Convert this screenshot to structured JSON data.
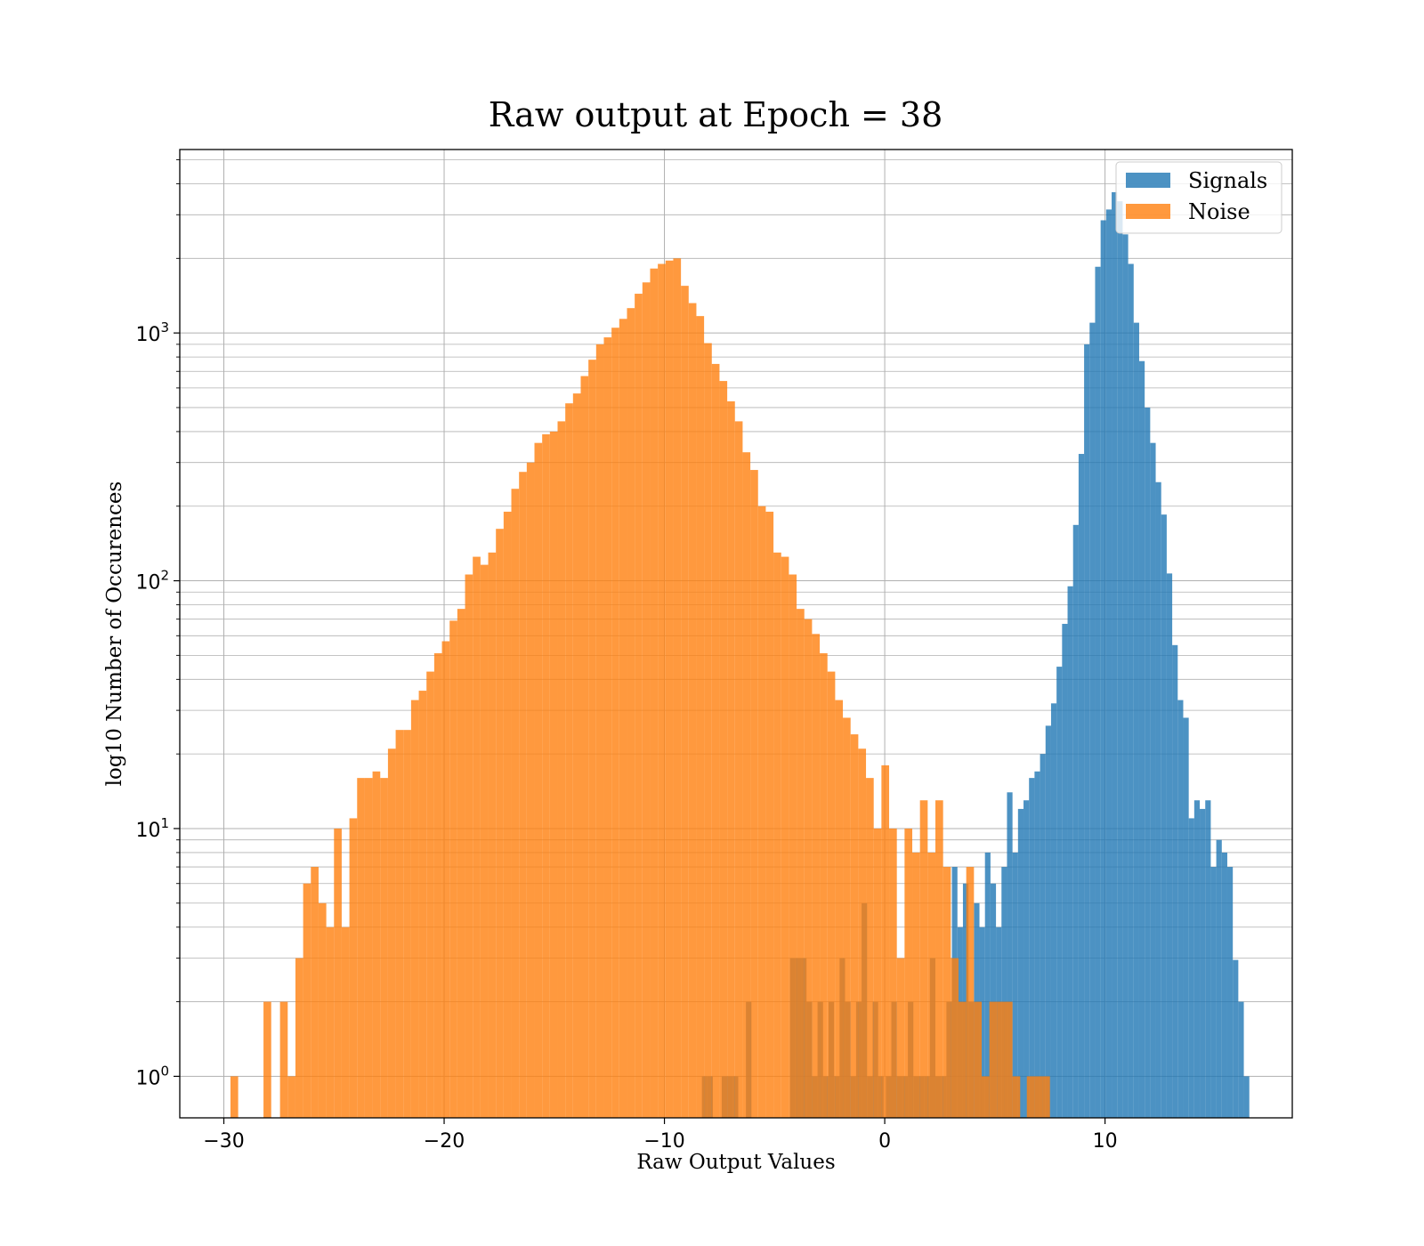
{
  "chart_data": {
    "type": "bar",
    "title": "Raw output at Epoch = 38",
    "xlabel": "Raw Output Values",
    "ylabel": "log10 Number of Occurences",
    "xlim": [
      -32,
      18.5
    ],
    "ylim": [
      0.68,
      5500
    ],
    "yscale": "log",
    "grid": true,
    "legend_position": "top-right",
    "x_ticks": [
      {
        "value": -30,
        "label": "−30"
      },
      {
        "value": -20,
        "label": "−20"
      },
      {
        "value": -10,
        "label": "−10"
      },
      {
        "value": 0,
        "label": "0"
      },
      {
        "value": 10,
        "label": "10"
      }
    ],
    "y_ticks": [
      {
        "value": 1,
        "base": "10",
        "exp": "0"
      },
      {
        "value": 10,
        "base": "10",
        "exp": "1"
      },
      {
        "value": 100,
        "base": "10",
        "exp": "2"
      },
      {
        "value": 1000,
        "base": "10",
        "exp": "3"
      }
    ],
    "series": [
      {
        "name": "Signals",
        "color": "#1f77b4",
        "opacity": 0.8,
        "bins": [
          [
            -8.3,
            -8.05,
            1
          ],
          [
            -8.05,
            -7.8,
            1
          ],
          [
            -7.4,
            -7.15,
            1
          ],
          [
            -7.15,
            -6.9,
            1
          ],
          [
            -6.9,
            -6.65,
            1
          ],
          [
            -6.3,
            -6.05,
            2
          ],
          [
            -4.3,
            -4.05,
            3
          ],
          [
            -4.05,
            -3.8,
            3
          ],
          [
            -3.8,
            -3.55,
            3
          ],
          [
            -3.55,
            -3.3,
            2
          ],
          [
            -3.3,
            -3.05,
            1
          ],
          [
            -3.05,
            -2.8,
            2
          ],
          [
            -2.8,
            -2.55,
            1
          ],
          [
            -2.55,
            -2.3,
            2
          ],
          [
            -2.3,
            -2.05,
            1
          ],
          [
            -2.05,
            -1.8,
            3
          ],
          [
            -1.8,
            -1.55,
            2
          ],
          [
            -1.55,
            -1.3,
            1
          ],
          [
            -1.3,
            -1.05,
            2
          ],
          [
            -1.05,
            -0.8,
            5
          ],
          [
            -0.8,
            -0.55,
            1
          ],
          [
            -0.55,
            -0.3,
            2
          ],
          [
            -0.3,
            -0.05,
            1
          ],
          [
            0.05,
            0.3,
            1
          ],
          [
            0.3,
            0.55,
            2
          ],
          [
            0.55,
            0.8,
            1
          ],
          [
            0.8,
            1.05,
            1
          ],
          [
            1.05,
            1.3,
            2
          ],
          [
            1.3,
            1.55,
            1
          ],
          [
            1.55,
            1.8,
            1
          ],
          [
            1.8,
            2.05,
            1
          ],
          [
            2.05,
            2.3,
            3
          ],
          [
            2.3,
            2.55,
            1
          ],
          [
            2.55,
            2.8,
            1
          ],
          [
            2.8,
            3.05,
            2
          ],
          [
            3.05,
            3.3,
            7
          ],
          [
            3.3,
            3.55,
            4
          ],
          [
            3.55,
            3.8,
            6
          ],
          [
            3.8,
            4.05,
            2
          ],
          [
            4.05,
            4.3,
            5
          ],
          [
            4.3,
            4.55,
            4
          ],
          [
            4.55,
            4.8,
            8
          ],
          [
            4.8,
            5.05,
            6
          ],
          [
            5.05,
            5.3,
            4
          ],
          [
            5.3,
            5.55,
            7
          ],
          [
            5.55,
            5.8,
            14
          ],
          [
            5.8,
            6.05,
            8
          ],
          [
            6.05,
            6.3,
            12
          ],
          [
            6.3,
            6.55,
            13
          ],
          [
            6.55,
            6.8,
            16
          ],
          [
            6.8,
            7.05,
            17
          ],
          [
            7.05,
            7.3,
            20
          ],
          [
            7.3,
            7.55,
            26
          ],
          [
            7.55,
            7.8,
            32
          ],
          [
            7.8,
            8.05,
            45
          ],
          [
            8.05,
            8.3,
            67
          ],
          [
            8.3,
            8.55,
            95
          ],
          [
            8.55,
            8.8,
            168
          ],
          [
            8.8,
            9.05,
            325
          ],
          [
            9.05,
            9.3,
            900
          ],
          [
            9.3,
            9.55,
            1100
          ],
          [
            9.55,
            9.8,
            1850
          ],
          [
            9.8,
            10.05,
            2850
          ],
          [
            10.05,
            10.3,
            3150
          ],
          [
            10.3,
            10.55,
            3700
          ],
          [
            10.55,
            10.8,
            3400
          ],
          [
            10.8,
            11.05,
            2500
          ],
          [
            11.05,
            11.3,
            1900
          ],
          [
            11.3,
            11.55,
            1100
          ],
          [
            11.55,
            11.8,
            770
          ],
          [
            11.8,
            12.05,
            500
          ],
          [
            12.05,
            12.3,
            360
          ],
          [
            12.3,
            12.55,
            250
          ],
          [
            12.55,
            12.8,
            185
          ],
          [
            12.8,
            13.05,
            107
          ],
          [
            13.05,
            13.3,
            55
          ],
          [
            13.3,
            13.55,
            33
          ],
          [
            13.55,
            13.8,
            28
          ],
          [
            13.8,
            14.05,
            11
          ],
          [
            14.05,
            14.3,
            13
          ],
          [
            14.3,
            14.55,
            12
          ],
          [
            14.55,
            14.8,
            13
          ],
          [
            14.8,
            15.05,
            7
          ],
          [
            15.05,
            15.3,
            9
          ],
          [
            15.3,
            15.55,
            8
          ],
          [
            15.55,
            15.8,
            7
          ],
          [
            15.8,
            16.05,
            2.95
          ],
          [
            16.05,
            16.3,
            2
          ],
          [
            16.3,
            16.55,
            1
          ]
        ]
      },
      {
        "name": "Noise",
        "color": "#ff7f0e",
        "opacity": 0.8,
        "bins": [
          [
            -29.7,
            -29.35,
            1
          ],
          [
            -28.2,
            -27.85,
            2
          ],
          [
            -27.45,
            -27.1,
            2
          ],
          [
            -27.1,
            -26.75,
            1
          ],
          [
            -26.75,
            -26.4,
            3
          ],
          [
            -26.4,
            -26.05,
            6
          ],
          [
            -26.05,
            -25.7,
            7
          ],
          [
            -25.7,
            -25.35,
            5
          ],
          [
            -25.35,
            -25,
            4
          ],
          [
            -25,
            -24.65,
            10
          ],
          [
            -24.65,
            -24.3,
            4
          ],
          [
            -24.3,
            -23.95,
            11
          ],
          [
            -23.95,
            -23.6,
            16
          ],
          [
            -23.6,
            -23.25,
            16
          ],
          [
            -23.25,
            -22.9,
            17
          ],
          [
            -22.9,
            -22.55,
            16
          ],
          [
            -22.55,
            -22.2,
            21
          ],
          [
            -22.2,
            -21.85,
            25
          ],
          [
            -21.85,
            -21.5,
            25
          ],
          [
            -21.5,
            -21.15,
            33
          ],
          [
            -21.15,
            -20.8,
            36
          ],
          [
            -20.8,
            -20.45,
            43
          ],
          [
            -20.45,
            -20.1,
            51
          ],
          [
            -20.1,
            -19.75,
            57
          ],
          [
            -19.75,
            -19.4,
            69
          ],
          [
            -19.4,
            -19.05,
            77
          ],
          [
            -19.05,
            -18.7,
            106
          ],
          [
            -18.7,
            -18.35,
            125
          ],
          [
            -18.35,
            -18,
            116
          ],
          [
            -18,
            -17.65,
            130
          ],
          [
            -17.65,
            -17.3,
            162
          ],
          [
            -17.3,
            -16.95,
            190
          ],
          [
            -16.95,
            -16.6,
            235
          ],
          [
            -16.6,
            -16.25,
            275
          ],
          [
            -16.25,
            -15.9,
            300
          ],
          [
            -15.9,
            -15.55,
            360
          ],
          [
            -15.55,
            -15.2,
            390
          ],
          [
            -15.2,
            -14.85,
            400
          ],
          [
            -14.85,
            -14.5,
            440
          ],
          [
            -14.5,
            -14.15,
            520
          ],
          [
            -14.15,
            -13.8,
            570
          ],
          [
            -13.8,
            -13.45,
            670
          ],
          [
            -13.45,
            -13.1,
            780
          ],
          [
            -13.1,
            -12.75,
            900
          ],
          [
            -12.75,
            -12.4,
            960
          ],
          [
            -12.4,
            -12.05,
            1050
          ],
          [
            -12.05,
            -11.7,
            1140
          ],
          [
            -11.7,
            -11.35,
            1260
          ],
          [
            -11.35,
            -11,
            1440
          ],
          [
            -11,
            -10.65,
            1600
          ],
          [
            -10.65,
            -10.3,
            1820
          ],
          [
            -10.3,
            -9.95,
            1900
          ],
          [
            -9.95,
            -9.6,
            1960
          ],
          [
            -9.6,
            -9.25,
            2000
          ],
          [
            -9.25,
            -8.9,
            1550
          ],
          [
            -8.9,
            -8.55,
            1320
          ],
          [
            -8.55,
            -8.2,
            1170
          ],
          [
            -8.2,
            -7.85,
            910
          ],
          [
            -7.85,
            -7.5,
            750
          ],
          [
            -7.5,
            -7.15,
            640
          ],
          [
            -7.15,
            -6.8,
            530
          ],
          [
            -6.8,
            -6.45,
            440
          ],
          [
            -6.45,
            -6.1,
            330
          ],
          [
            -6.1,
            -5.75,
            280
          ],
          [
            -5.75,
            -5.4,
            200
          ],
          [
            -5.4,
            -5.05,
            190
          ],
          [
            -5.05,
            -4.7,
            130
          ],
          [
            -4.7,
            -4.35,
            125
          ],
          [
            -4.35,
            -4,
            106
          ],
          [
            -4,
            -3.65,
            77
          ],
          [
            -3.65,
            -3.3,
            70
          ],
          [
            -3.3,
            -2.95,
            61
          ],
          [
            -2.95,
            -2.6,
            51
          ],
          [
            -2.6,
            -2.25,
            43
          ],
          [
            -2.25,
            -1.9,
            33
          ],
          [
            -1.9,
            -1.55,
            28
          ],
          [
            -1.55,
            -1.2,
            24
          ],
          [
            -1.2,
            -0.85,
            21
          ],
          [
            -0.85,
            -0.5,
            16
          ],
          [
            -0.5,
            -0.15,
            10
          ],
          [
            -0.15,
            0.2,
            18
          ],
          [
            0.2,
            0.55,
            10
          ],
          [
            0.55,
            0.9,
            3
          ],
          [
            0.9,
            1.25,
            10
          ],
          [
            1.25,
            1.6,
            8
          ],
          [
            1.6,
            1.95,
            13
          ],
          [
            1.95,
            2.3,
            8
          ],
          [
            2.3,
            2.65,
            13
          ],
          [
            2.65,
            3,
            7
          ],
          [
            3,
            3.35,
            3
          ],
          [
            3.35,
            3.7,
            2
          ],
          [
            3.7,
            4.05,
            7
          ],
          [
            4.05,
            4.4,
            2
          ],
          [
            4.4,
            4.75,
            1
          ],
          [
            4.75,
            5.1,
            2
          ],
          [
            5.1,
            5.45,
            2
          ],
          [
            5.45,
            5.8,
            2
          ],
          [
            5.8,
            6.15,
            1
          ],
          [
            6.45,
            6.8,
            1
          ],
          [
            6.8,
            7.15,
            1
          ],
          [
            7.15,
            7.5,
            1
          ]
        ]
      }
    ]
  }
}
